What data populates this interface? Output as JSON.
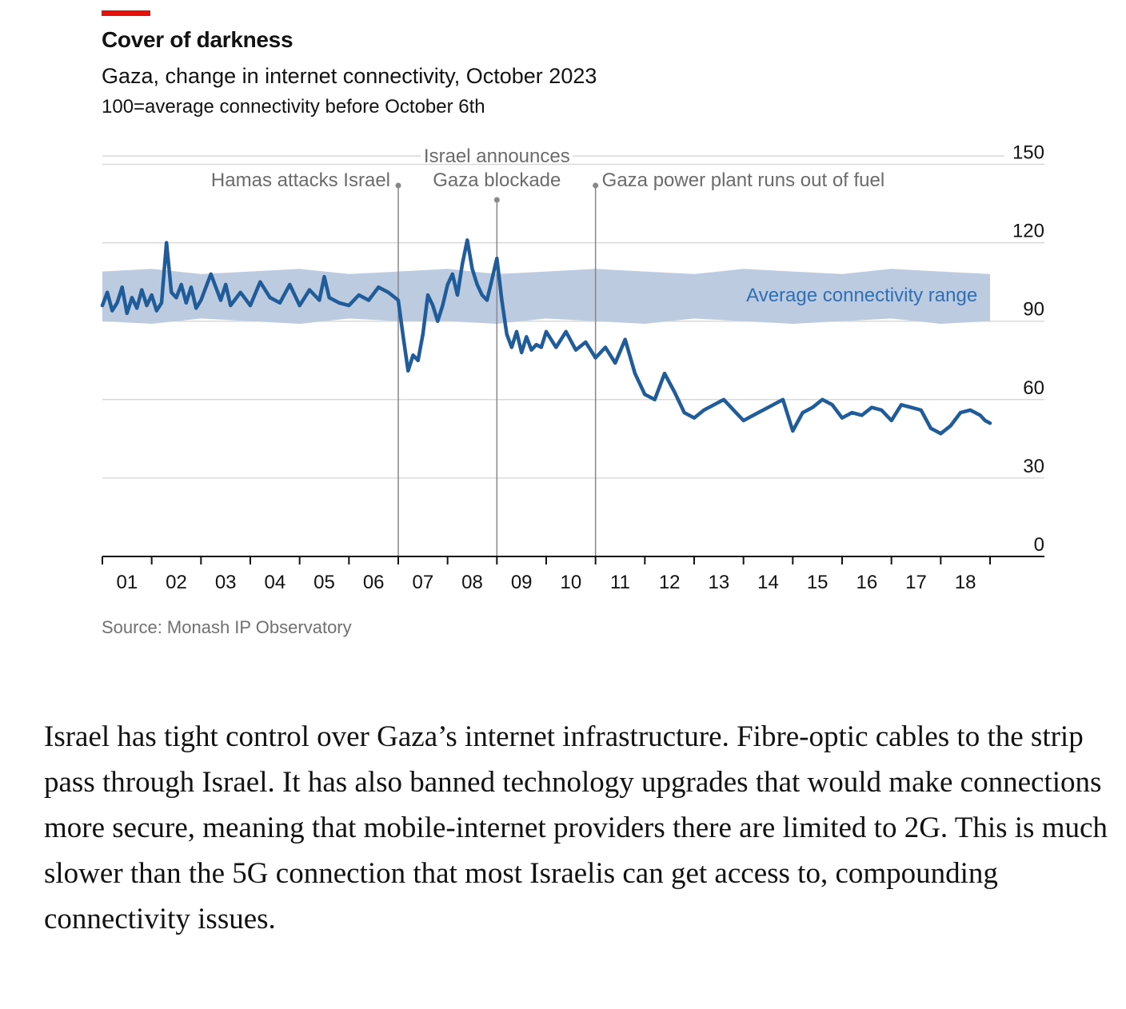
{
  "header": {
    "title": "Cover of darkness",
    "subtitle": "Gaza, change in internet connectivity, October 2023",
    "unit": "100=average connectivity before October 6th"
  },
  "source": "Source: Monash IP Observatory",
  "body": {
    "paragraph": "Israel has tight control over Gaza’s internet infrastructure. Fibre-optic cables to the strip pass through Israel. It has also banned technology upgrades that would make connections more secure, meaning that mobile-internet providers there are limited to 2G. This is much slower than the 5G connection that most Israelis can get access to, compounding connectivity issues."
  },
  "colors": {
    "accent": "#e3120b",
    "line": "#1f5c99",
    "band": "#bccbe0",
    "band_label": "#2e6fb5",
    "grid": "#d9d9d9",
    "annotation": "#6b6b6b"
  },
  "chart_data": {
    "type": "line",
    "title": "Cover of darkness",
    "subtitle": "Gaza, change in internet connectivity, October 2023",
    "ylabel": "100=average connectivity before October 6th",
    "ylim": [
      0,
      150
    ],
    "yticks": [
      0,
      30,
      60,
      90,
      120,
      150
    ],
    "xlim": [
      1,
      19
    ],
    "xticks": [
      "01",
      "02",
      "03",
      "04",
      "05",
      "06",
      "07",
      "08",
      "09",
      "10",
      "11",
      "12",
      "13",
      "14",
      "15",
      "16",
      "17",
      "18"
    ],
    "grid": true,
    "series": [
      {
        "role": "line",
        "x": [
          1.0,
          1.1,
          1.2,
          1.3,
          1.4,
          1.5,
          1.6,
          1.7,
          1.8,
          1.9,
          2.0,
          2.1,
          2.2,
          2.3,
          2.4,
          2.5,
          2.6,
          2.7,
          2.8,
          2.9,
          3.0,
          3.2,
          3.4,
          3.5,
          3.6,
          3.8,
          4.0,
          4.2,
          4.4,
          4.6,
          4.8,
          5.0,
          5.2,
          5.4,
          5.5,
          5.6,
          5.8,
          6.0,
          6.2,
          6.4,
          6.6,
          6.8,
          7.0,
          7.1,
          7.2,
          7.3,
          7.4,
          7.5,
          7.6,
          7.7,
          7.8,
          7.9,
          8.0,
          8.1,
          8.2,
          8.3,
          8.4,
          8.5,
          8.6,
          8.7,
          8.8,
          8.9,
          9.0,
          9.1,
          9.2,
          9.3,
          9.4,
          9.5,
          9.6,
          9.7,
          9.8,
          9.9,
          10.0,
          10.2,
          10.4,
          10.6,
          10.8,
          11.0,
          11.2,
          11.4,
          11.6,
          11.8,
          12.0,
          12.2,
          12.4,
          12.6,
          12.8,
          13.0,
          13.2,
          13.4,
          13.6,
          13.8,
          14.0,
          14.2,
          14.4,
          14.6,
          14.8,
          15.0,
          15.2,
          15.4,
          15.6,
          15.8,
          16.0,
          16.2,
          16.4,
          16.6,
          16.8,
          17.0,
          17.2,
          17.4,
          17.6,
          17.8,
          18.0,
          18.2,
          18.4,
          18.6,
          18.8,
          18.9,
          19.0
        ],
        "values": [
          96,
          101,
          94,
          97,
          103,
          93,
          99,
          95,
          102,
          96,
          100,
          94,
          97,
          120,
          101,
          99,
          104,
          97,
          103,
          95,
          98,
          108,
          98,
          104,
          96,
          101,
          96,
          105,
          99,
          97,
          104,
          96,
          102,
          98,
          107,
          99,
          97,
          96,
          100,
          98,
          103,
          101,
          98,
          84,
          71,
          77,
          75,
          85,
          100,
          96,
          90,
          96,
          104,
          108,
          100,
          112,
          121,
          110,
          104,
          100,
          98,
          106,
          114,
          98,
          85,
          80,
          86,
          78,
          84,
          79,
          81,
          80,
          86,
          80,
          86,
          79,
          82,
          76,
          80,
          74,
          83,
          70,
          62,
          60,
          70,
          63,
          55,
          53,
          56,
          58,
          60,
          56,
          52,
          54,
          56,
          58,
          60,
          48,
          55,
          57,
          60,
          58,
          53,
          55,
          54,
          57,
          56,
          52,
          58,
          57,
          56,
          49,
          47,
          50,
          55,
          56,
          54,
          52,
          51
        ]
      },
      {
        "role": "band",
        "name": "Average connectivity range",
        "x": [
          1,
          2,
          3,
          4,
          5,
          6,
          7,
          8,
          9,
          10,
          11,
          12,
          13,
          14,
          15,
          16,
          17,
          18,
          19
        ],
        "lower": [
          90,
          89,
          91,
          90,
          89,
          91,
          90,
          90,
          89,
          91,
          90,
          89,
          91,
          90,
          89,
          90,
          91,
          89,
          90
        ],
        "upper": [
          109,
          110,
          108,
          109,
          110,
          108,
          109,
          110,
          108,
          109,
          110,
          109,
          108,
          110,
          109,
          108,
          110,
          109,
          108
        ]
      }
    ],
    "annotations": [
      {
        "x": 7.0,
        "text": "Hamas attacks Israel"
      },
      {
        "x": 9.0,
        "lines": [
          "Israel announces",
          "Gaza blockade"
        ]
      },
      {
        "x": 11.0,
        "text": "Gaza power plant runs out of fuel"
      }
    ],
    "band_label": "Average connectivity range"
  }
}
